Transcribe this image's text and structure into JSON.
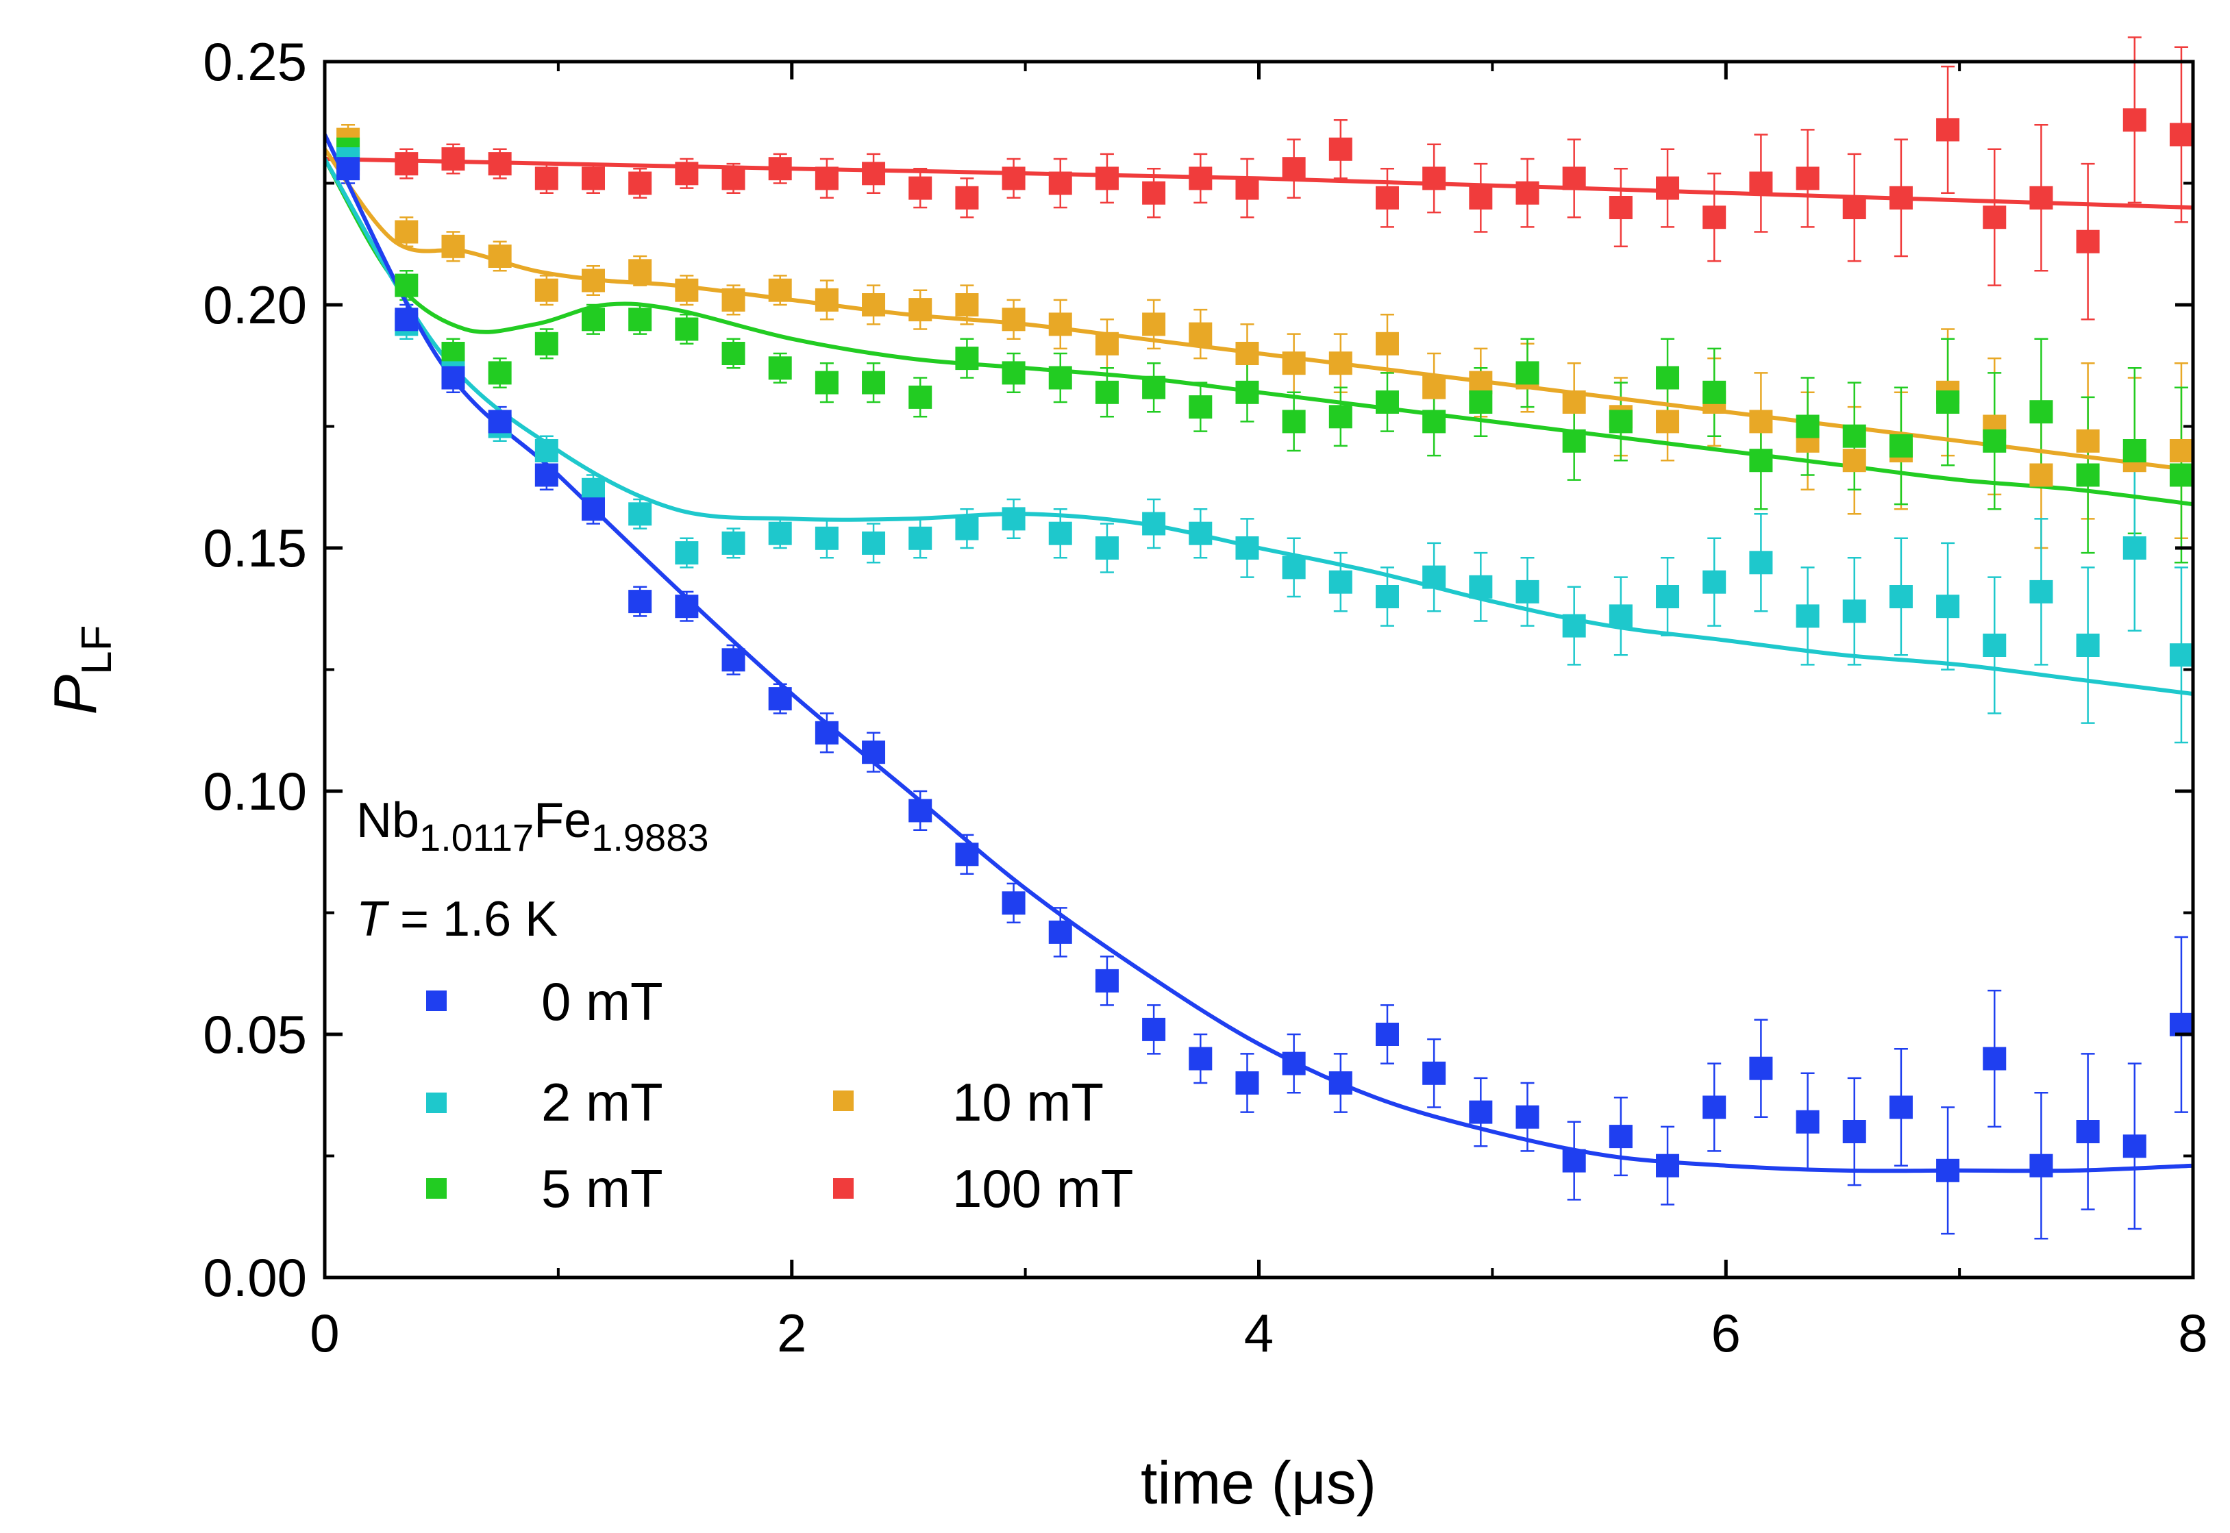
{
  "chart_data": {
    "type": "scatter",
    "title": "",
    "xlabel": "time (μs)",
    "ylabel_main": "P",
    "ylabel_sub": "LF",
    "xlim": [
      0,
      8
    ],
    "ylim": [
      0,
      0.25
    ],
    "xticks": [
      "0",
      "2",
      "4",
      "6",
      "8"
    ],
    "yticks": [
      "0.00",
      "0.05",
      "0.10",
      "0.15",
      "0.20",
      "0.25"
    ],
    "xtick_values": [
      0,
      2,
      4,
      6,
      8
    ],
    "ytick_values": [
      0,
      0.05,
      0.1,
      0.15,
      0.2,
      0.25
    ],
    "annotation": {
      "formula_nb": "Nb",
      "formula_nb_sub": "1.0117",
      "formula_fe": "Fe",
      "formula_fe_sub": "1.9883",
      "temp_var": "T",
      "temp_val": " = 1.6 K"
    },
    "legend_placement": "bottom-left",
    "series": [
      {
        "name": "0 mT",
        "color": "#1f3ff0",
        "x": [
          0.1,
          0.35,
          0.55,
          0.75,
          0.95,
          1.15,
          1.35,
          1.55,
          1.75,
          1.95,
          2.15,
          2.35,
          2.55,
          2.75,
          2.95,
          3.15,
          3.35,
          3.55,
          3.75,
          3.95,
          4.15,
          4.35,
          4.55,
          4.75,
          4.95,
          5.15,
          5.35,
          5.55,
          5.75,
          5.95,
          6.15,
          6.35,
          6.55,
          6.75,
          6.95,
          7.15,
          7.35,
          7.55,
          7.75,
          7.95
        ],
        "y": [
          0.228,
          0.197,
          0.185,
          0.176,
          0.165,
          0.158,
          0.139,
          0.138,
          0.127,
          0.119,
          0.112,
          0.108,
          0.096,
          0.087,
          0.077,
          0.071,
          0.061,
          0.051,
          0.045,
          0.04,
          0.044,
          0.04,
          0.05,
          0.042,
          0.034,
          0.033,
          0.024,
          0.029,
          0.023,
          0.035,
          0.043,
          0.032,
          0.03,
          0.035,
          0.022,
          0.045,
          0.023,
          0.03,
          0.027,
          0.052
        ],
        "err": [
          0.003,
          0.003,
          0.003,
          0.003,
          0.003,
          0.003,
          0.003,
          0.003,
          0.003,
          0.003,
          0.004,
          0.004,
          0.004,
          0.004,
          0.004,
          0.005,
          0.005,
          0.005,
          0.005,
          0.006,
          0.006,
          0.006,
          0.006,
          0.007,
          0.007,
          0.007,
          0.008,
          0.008,
          0.008,
          0.009,
          0.01,
          0.01,
          0.011,
          0.012,
          0.013,
          0.014,
          0.015,
          0.016,
          0.017,
          0.018
        ],
        "fit_x": [
          0,
          0.5,
          1,
          1.5,
          2,
          2.5,
          3,
          3.5,
          4,
          4.5,
          5,
          5.5,
          6,
          6.5,
          7,
          7.5,
          8
        ],
        "fit_y": [
          0.235,
          0.188,
          0.165,
          0.142,
          0.12,
          0.1,
          0.08,
          0.063,
          0.048,
          0.037,
          0.03,
          0.025,
          0.023,
          0.022,
          0.022,
          0.022,
          0.023
        ]
      },
      {
        "name": "2 mT",
        "color": "#1ec8cc",
        "x": [
          0.1,
          0.35,
          0.55,
          0.75,
          0.95,
          1.15,
          1.35,
          1.55,
          1.75,
          1.95,
          2.15,
          2.35,
          2.55,
          2.75,
          2.95,
          3.15,
          3.35,
          3.55,
          3.75,
          3.95,
          4.15,
          4.35,
          4.55,
          4.75,
          4.95,
          5.15,
          5.35,
          5.55,
          5.75,
          5.95,
          6.15,
          6.35,
          6.55,
          6.75,
          6.95,
          7.15,
          7.35,
          7.55,
          7.75,
          7.95
        ],
        "y": [
          0.23,
          0.196,
          0.186,
          0.175,
          0.17,
          0.162,
          0.157,
          0.149,
          0.151,
          0.153,
          0.152,
          0.151,
          0.152,
          0.154,
          0.156,
          0.153,
          0.15,
          0.155,
          0.153,
          0.15,
          0.146,
          0.143,
          0.14,
          0.144,
          0.142,
          0.141,
          0.134,
          0.136,
          0.14,
          0.143,
          0.147,
          0.136,
          0.137,
          0.14,
          0.138,
          0.13,
          0.141,
          0.13,
          0.15,
          0.128
        ],
        "err": [
          0.003,
          0.003,
          0.003,
          0.003,
          0.003,
          0.003,
          0.003,
          0.003,
          0.003,
          0.003,
          0.004,
          0.004,
          0.004,
          0.004,
          0.004,
          0.005,
          0.005,
          0.005,
          0.005,
          0.006,
          0.006,
          0.006,
          0.006,
          0.007,
          0.007,
          0.007,
          0.008,
          0.008,
          0.008,
          0.009,
          0.01,
          0.01,
          0.011,
          0.012,
          0.013,
          0.014,
          0.015,
          0.016,
          0.017,
          0.018
        ],
        "fit_x": [
          0,
          0.5,
          1,
          1.5,
          2,
          2.5,
          3,
          3.5,
          4,
          4.5,
          5,
          5.5,
          6,
          6.5,
          7,
          7.5,
          8
        ],
        "fit_y": [
          0.23,
          0.19,
          0.17,
          0.158,
          0.156,
          0.156,
          0.157,
          0.155,
          0.15,
          0.145,
          0.139,
          0.134,
          0.131,
          0.128,
          0.126,
          0.123,
          0.12
        ]
      },
      {
        "name": "5 mT",
        "color": "#22cc22",
        "x": [
          0.1,
          0.35,
          0.55,
          0.75,
          0.95,
          1.15,
          1.35,
          1.55,
          1.75,
          1.95,
          2.15,
          2.35,
          2.55,
          2.75,
          2.95,
          3.15,
          3.35,
          3.55,
          3.75,
          3.95,
          4.15,
          4.35,
          4.55,
          4.75,
          4.95,
          5.15,
          5.35,
          5.55,
          5.75,
          5.95,
          6.15,
          6.35,
          6.55,
          6.75,
          6.95,
          7.15,
          7.35,
          7.55,
          7.75,
          7.95
        ],
        "y": [
          0.232,
          0.204,
          0.19,
          0.186,
          0.192,
          0.197,
          0.197,
          0.195,
          0.19,
          0.187,
          0.184,
          0.184,
          0.181,
          0.189,
          0.186,
          0.185,
          0.182,
          0.183,
          0.179,
          0.182,
          0.176,
          0.177,
          0.18,
          0.176,
          0.18,
          0.186,
          0.172,
          0.176,
          0.185,
          0.182,
          0.168,
          0.175,
          0.173,
          0.171,
          0.18,
          0.172,
          0.178,
          0.165,
          0.17,
          0.165
        ],
        "err": [
          0.003,
          0.003,
          0.003,
          0.003,
          0.003,
          0.003,
          0.003,
          0.003,
          0.003,
          0.003,
          0.004,
          0.004,
          0.004,
          0.004,
          0.004,
          0.005,
          0.005,
          0.005,
          0.005,
          0.006,
          0.006,
          0.006,
          0.006,
          0.007,
          0.007,
          0.007,
          0.008,
          0.008,
          0.008,
          0.009,
          0.01,
          0.01,
          0.011,
          0.012,
          0.013,
          0.014,
          0.015,
          0.016,
          0.017,
          0.018
        ],
        "fit_x": [
          0,
          0.3,
          0.6,
          0.9,
          1.2,
          1.5,
          2,
          2.5,
          3,
          3.5,
          4,
          4.5,
          5,
          5.5,
          6,
          6.5,
          7,
          7.5,
          8
        ],
        "fit_y": [
          0.23,
          0.205,
          0.195,
          0.196,
          0.2,
          0.199,
          0.193,
          0.189,
          0.187,
          0.185,
          0.182,
          0.179,
          0.176,
          0.173,
          0.17,
          0.167,
          0.164,
          0.162,
          0.159
        ]
      },
      {
        "name": "10 mT",
        "color": "#e8a826",
        "x": [
          0.1,
          0.35,
          0.55,
          0.75,
          0.95,
          1.15,
          1.35,
          1.55,
          1.75,
          1.95,
          2.15,
          2.35,
          2.55,
          2.75,
          2.95,
          3.15,
          3.35,
          3.55,
          3.75,
          3.95,
          4.15,
          4.35,
          4.55,
          4.75,
          4.95,
          5.15,
          5.35,
          5.55,
          5.75,
          5.95,
          6.15,
          6.35,
          6.55,
          6.75,
          6.95,
          7.15,
          7.35,
          7.55,
          7.75,
          7.95
        ],
        "y": [
          0.234,
          0.215,
          0.212,
          0.21,
          0.203,
          0.205,
          0.207,
          0.203,
          0.201,
          0.203,
          0.201,
          0.2,
          0.199,
          0.2,
          0.197,
          0.196,
          0.192,
          0.196,
          0.194,
          0.19,
          0.188,
          0.188,
          0.192,
          0.183,
          0.184,
          0.185,
          0.18,
          0.177,
          0.176,
          0.18,
          0.176,
          0.172,
          0.168,
          0.17,
          0.182,
          0.175,
          0.165,
          0.172,
          0.168,
          0.17
        ],
        "err": [
          0.003,
          0.003,
          0.003,
          0.003,
          0.003,
          0.003,
          0.003,
          0.003,
          0.003,
          0.003,
          0.004,
          0.004,
          0.004,
          0.004,
          0.004,
          0.005,
          0.005,
          0.005,
          0.005,
          0.006,
          0.006,
          0.006,
          0.006,
          0.007,
          0.007,
          0.007,
          0.008,
          0.008,
          0.008,
          0.009,
          0.01,
          0.01,
          0.011,
          0.012,
          0.013,
          0.014,
          0.015,
          0.016,
          0.017,
          0.018
        ],
        "fit_x": [
          0,
          0.3,
          0.6,
          0.9,
          1.2,
          1.5,
          2,
          2.5,
          3,
          3.5,
          4,
          4.5,
          5,
          5.5,
          6,
          6.5,
          7,
          7.5,
          8
        ],
        "fit_y": [
          0.232,
          0.213,
          0.211,
          0.207,
          0.205,
          0.204,
          0.201,
          0.198,
          0.196,
          0.193,
          0.19,
          0.187,
          0.184,
          0.181,
          0.178,
          0.175,
          0.172,
          0.169,
          0.166
        ]
      },
      {
        "name": "100 mT",
        "color": "#f03c3c",
        "x": [
          0.1,
          0.35,
          0.55,
          0.75,
          0.95,
          1.15,
          1.35,
          1.55,
          1.75,
          1.95,
          2.15,
          2.35,
          2.55,
          2.75,
          2.95,
          3.15,
          3.35,
          3.55,
          3.75,
          3.95,
          4.15,
          4.35,
          4.55,
          4.75,
          4.95,
          5.15,
          5.35,
          5.55,
          5.75,
          5.95,
          6.15,
          6.35,
          6.55,
          6.75,
          6.95,
          7.15,
          7.35,
          7.55,
          7.75,
          7.95
        ],
        "y": [
          0.229,
          0.229,
          0.23,
          0.229,
          0.226,
          0.226,
          0.225,
          0.227,
          0.226,
          0.228,
          0.226,
          0.227,
          0.224,
          0.222,
          0.226,
          0.225,
          0.226,
          0.223,
          0.226,
          0.224,
          0.228,
          0.232,
          0.222,
          0.226,
          0.222,
          0.223,
          0.226,
          0.22,
          0.224,
          0.218,
          0.225,
          0.226,
          0.22,
          0.222,
          0.236,
          0.218,
          0.222,
          0.213,
          0.238,
          0.235
        ],
        "err": [
          0.003,
          0.003,
          0.003,
          0.003,
          0.003,
          0.003,
          0.003,
          0.003,
          0.003,
          0.003,
          0.004,
          0.004,
          0.004,
          0.004,
          0.004,
          0.005,
          0.005,
          0.005,
          0.005,
          0.006,
          0.006,
          0.006,
          0.006,
          0.007,
          0.007,
          0.007,
          0.008,
          0.008,
          0.008,
          0.009,
          0.01,
          0.01,
          0.011,
          0.012,
          0.013,
          0.014,
          0.015,
          0.016,
          0.017,
          0.018
        ],
        "fit_x": [
          0,
          2,
          4,
          6,
          8
        ],
        "fit_y": [
          0.23,
          0.228,
          0.226,
          0.223,
          0.22
        ]
      }
    ]
  }
}
